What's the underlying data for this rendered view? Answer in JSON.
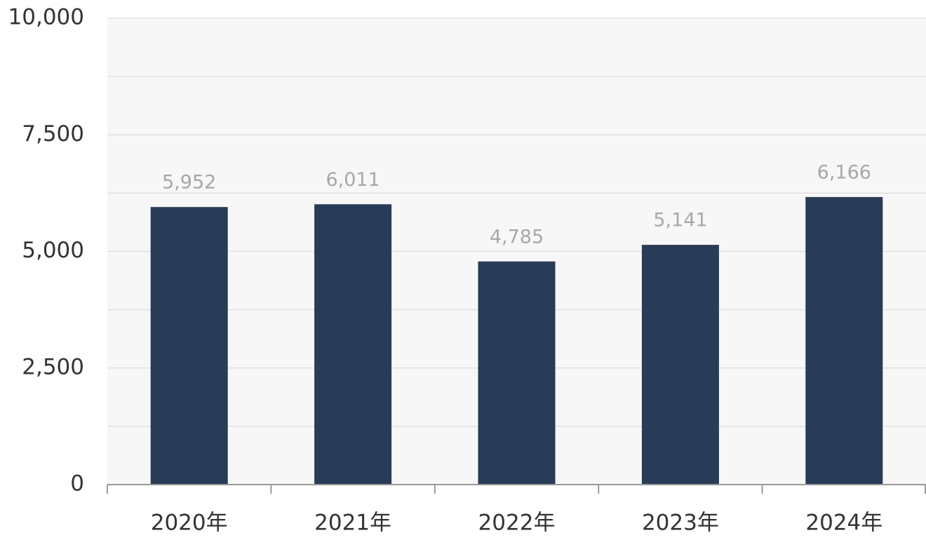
{
  "chart_data": {
    "type": "bar",
    "categories": [
      "2020年",
      "2021年",
      "2022年",
      "2023年",
      "2024年"
    ],
    "values": [
      5952,
      6011,
      4785,
      5141,
      6166
    ],
    "value_labels": [
      "5,952",
      "6,011",
      "4,785",
      "5,141",
      "6,166"
    ],
    "color": "#283b57",
    "ylim": [
      0,
      10000
    ],
    "yticks": [
      0,
      {
        "value": 2500,
        "label": "2,500"
      },
      {
        "value": 5000,
        "label": "5,000"
      },
      {
        "value": 7500,
        "label": "7,500"
      },
      {
        "value": 10000,
        "label": "10,000"
      }
    ],
    "minor_yticks": [
      1250,
      3750,
      6250,
      8750
    ],
    "grid": true
  }
}
